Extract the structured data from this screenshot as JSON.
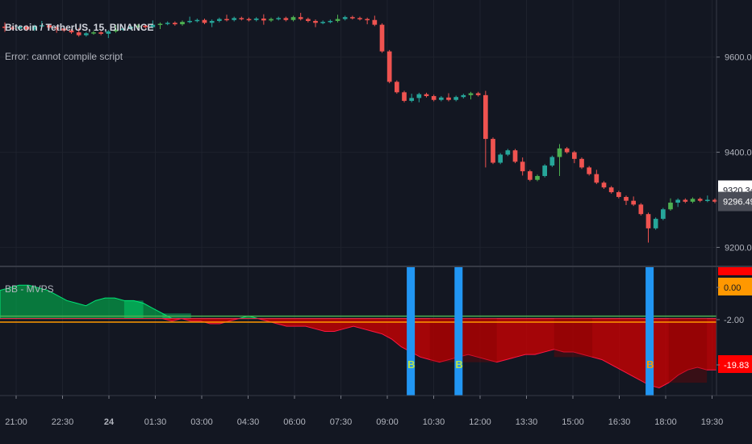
{
  "header": {
    "symbol_title": "Bitcoin / TetherUS, 15, BINANCE",
    "error_text": "Error: cannot compile script"
  },
  "indicator": {
    "name": "BB - MVPS"
  },
  "colors": {
    "background": "#131722",
    "up_candle": "#26a69a",
    "up_candle_alt": "#4caf50",
    "down_candle": "#ef5350",
    "osc_positive": "#00c853",
    "osc_negative": "#d50000",
    "signal_bar": "#2196f3",
    "signal_label_green": "#b7e34a",
    "signal_label_orange": "#ff9800",
    "zero_line": "#4caf50",
    "neg_line": "#ff9800"
  },
  "chart_data": [
    {
      "type": "candlestick",
      "x_tick_labels": [
        "21:00",
        "22:30",
        "24",
        "01:30",
        "03:00",
        "04:30",
        "06:00",
        "07:30",
        "09:00",
        "10:30",
        "12:00",
        "13:30",
        "15:00",
        "16:30",
        "18:00",
        "19:30"
      ],
      "y_tick_labels": [
        "9600.00",
        "9400.00",
        "9200.00"
      ],
      "ylim": [
        9160,
        9720
      ],
      "price_badges": [
        {
          "label": "9320.34",
          "value": 9320.34
        },
        {
          "label": "9296.49",
          "value": 9296.49
        }
      ],
      "close_series": [
        9662,
        9660,
        9664,
        9658,
        9665,
        9667,
        9662,
        9660,
        9656,
        9652,
        9646,
        9650,
        9652,
        9649,
        9654,
        9658,
        9660,
        9664,
        9666,
        9663,
        9668,
        9670,
        9672,
        9669,
        9674,
        9676,
        9678,
        9672,
        9676,
        9680,
        9678,
        9682,
        9680,
        9678,
        9681,
        9677,
        9680,
        9682,
        9678,
        9684,
        9680,
        9676,
        9672,
        9674,
        9676,
        9680,
        9684,
        9682,
        9680,
        9678,
        9668,
        9612,
        9548,
        9526,
        9508,
        9514,
        9522,
        9518,
        9510,
        9515,
        9510,
        9516,
        9520,
        9524,
        9520,
        9428,
        9378,
        9395,
        9404,
        9380,
        9360,
        9342,
        9350,
        9372,
        9390,
        9408,
        9400,
        9386,
        9368,
        9354,
        9336,
        9326,
        9316,
        9306,
        9298,
        9290,
        9270,
        9240,
        9260,
        9280,
        9294,
        9300,
        9296,
        9302,
        9298,
        9300,
        9296
      ]
    },
    {
      "type": "area",
      "name": "BB - MVPS",
      "ylim": [
        -30,
        20
      ],
      "y_tick_labels": [
        "0.00",
        "-2.00",
        "-19.83"
      ],
      "values": [
        11,
        12,
        13,
        13,
        12,
        11,
        9,
        7,
        6,
        5,
        7,
        8,
        8,
        7,
        7,
        6,
        4,
        2,
        -1,
        0,
        -1,
        -1,
        -2,
        -2,
        -1,
        0,
        1,
        0,
        -1,
        -2,
        -3,
        -3,
        -3,
        -4,
        -5,
        -5,
        -4,
        -3,
        -4,
        -5,
        -6,
        -8,
        -11,
        -13,
        -15,
        -16,
        -17,
        -16,
        -15,
        -14,
        -15,
        -16,
        -17,
        -16,
        -15,
        -14,
        -14,
        -13,
        -12,
        -13,
        -13,
        -14,
        -15,
        -16,
        -18,
        -20,
        -22,
        -24,
        -26,
        -27,
        -25,
        -22,
        -20,
        -19,
        -20,
        -20
      ],
      "signal_markers": [
        {
          "label": "B",
          "index": 43
        },
        {
          "label": "B",
          "index": 48
        },
        {
          "label": "B",
          "index": 68
        }
      ]
    }
  ]
}
